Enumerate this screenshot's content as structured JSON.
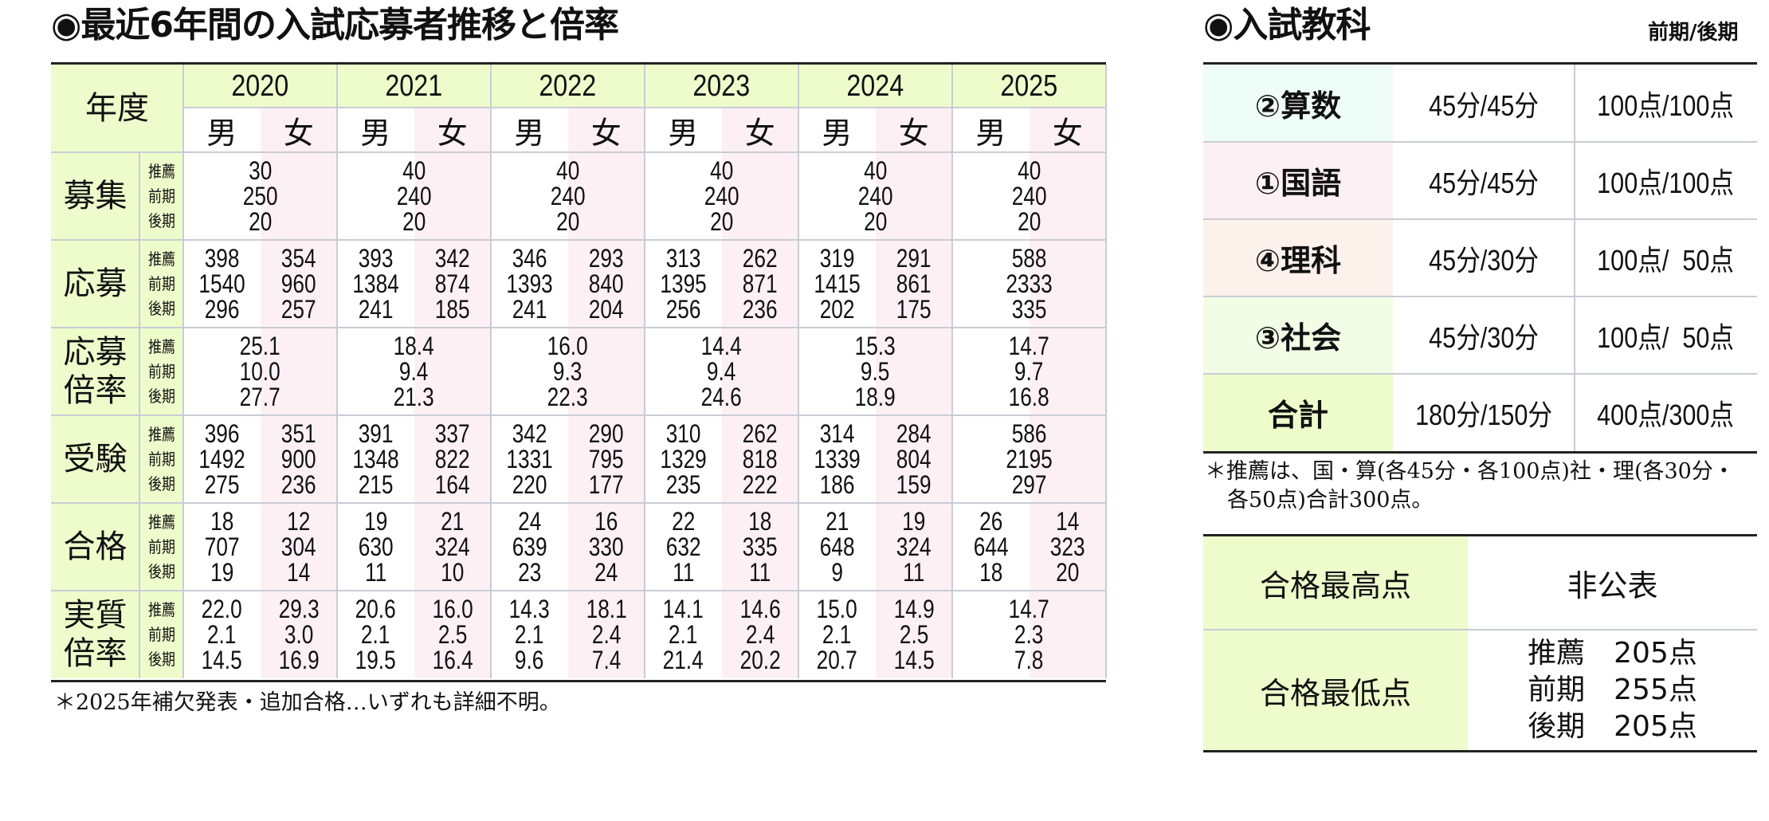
{
  "left": {
    "title": "◉最近6年間の入試応募者推移と倍率",
    "corner_label": "年度",
    "years": [
      "2020",
      "2021",
      "2022",
      "2023",
      "2024",
      "2025"
    ],
    "male": "男",
    "female": "女",
    "sub_labels": [
      "推薦",
      "前期",
      "後期"
    ],
    "rows": [
      {
        "label": "募集",
        "merged": true,
        "values": [
          [
            "30",
            "250",
            "20"
          ],
          [
            "40",
            "240",
            "20"
          ],
          [
            "40",
            "240",
            "20"
          ],
          [
            "40",
            "240",
            "20"
          ],
          [
            "40",
            "240",
            "20"
          ],
          [
            "40",
            "240",
            "20"
          ]
        ]
      },
      {
        "label": "応募",
        "merged": false,
        "values": [
          {
            "m": [
              "398",
              "1540",
              "296"
            ],
            "f": [
              "354",
              "960",
              "257"
            ]
          },
          {
            "m": [
              "393",
              "1384",
              "241"
            ],
            "f": [
              "342",
              "874",
              "185"
            ]
          },
          {
            "m": [
              "346",
              "1393",
              "241"
            ],
            "f": [
              "293",
              "840",
              "204"
            ]
          },
          {
            "m": [
              "313",
              "1395",
              "256"
            ],
            "f": [
              "262",
              "871",
              "236"
            ]
          },
          {
            "m": [
              "319",
              "1415",
              "202"
            ],
            "f": [
              "291",
              "861",
              "175"
            ]
          },
          {
            "merged": [
              "588",
              "2333",
              "335"
            ]
          }
        ]
      },
      {
        "label": "応募倍率",
        "label_lines": [
          "応募",
          "倍率"
        ],
        "merged": true,
        "values": [
          [
            "25.1",
            "10.0",
            "27.7"
          ],
          [
            "18.4",
            "9.4",
            "21.3"
          ],
          [
            "16.0",
            "9.3",
            "22.3"
          ],
          [
            "14.4",
            "9.4",
            "24.6"
          ],
          [
            "15.3",
            "9.5",
            "18.9"
          ],
          [
            "14.7",
            "9.7",
            "16.8"
          ]
        ]
      },
      {
        "label": "受験",
        "merged": false,
        "values": [
          {
            "m": [
              "396",
              "1492",
              "275"
            ],
            "f": [
              "351",
              "900",
              "236"
            ]
          },
          {
            "m": [
              "391",
              "1348",
              "215"
            ],
            "f": [
              "337",
              "822",
              "164"
            ]
          },
          {
            "m": [
              "342",
              "1331",
              "220"
            ],
            "f": [
              "290",
              "795",
              "177"
            ]
          },
          {
            "m": [
              "310",
              "1329",
              "235"
            ],
            "f": [
              "262",
              "818",
              "222"
            ]
          },
          {
            "m": [
              "314",
              "1339",
              "186"
            ],
            "f": [
              "284",
              "804",
              "159"
            ]
          },
          {
            "merged": [
              "586",
              "2195",
              "297"
            ]
          }
        ]
      },
      {
        "label": "合格",
        "merged": false,
        "values": [
          {
            "m": [
              "18",
              "707",
              "19"
            ],
            "f": [
              "12",
              "304",
              "14"
            ]
          },
          {
            "m": [
              "19",
              "630",
              "11"
            ],
            "f": [
              "21",
              "324",
              "10"
            ]
          },
          {
            "m": [
              "24",
              "639",
              "23"
            ],
            "f": [
              "16",
              "330",
              "24"
            ]
          },
          {
            "m": [
              "22",
              "632",
              "11"
            ],
            "f": [
              "18",
              "335",
              "11"
            ]
          },
          {
            "m": [
              "21",
              "648",
              "9"
            ],
            "f": [
              "19",
              "324",
              "11"
            ]
          },
          {
            "m": [
              "26",
              "644",
              "18"
            ],
            "f": [
              "14",
              "323",
              "20"
            ]
          }
        ]
      },
      {
        "label": "実質倍率",
        "label_lines": [
          "実質",
          "倍率"
        ],
        "merged": false,
        "values": [
          {
            "m": [
              "22.0",
              "2.1",
              "14.5"
            ],
            "f": [
              "29.3",
              "3.0",
              "16.9"
            ]
          },
          {
            "m": [
              "20.6",
              "2.1",
              "19.5"
            ],
            "f": [
              "16.0",
              "2.5",
              "16.4"
            ]
          },
          {
            "m": [
              "14.3",
              "2.1",
              "9.6"
            ],
            "f": [
              "18.1",
              "2.4",
              "7.4"
            ]
          },
          {
            "m": [
              "14.1",
              "2.1",
              "21.4"
            ],
            "f": [
              "14.6",
              "2.4",
              "20.2"
            ]
          },
          {
            "m": [
              "15.0",
              "2.1",
              "20.7"
            ],
            "f": [
              "14.9",
              "2.5",
              "14.5"
            ]
          },
          {
            "merged": [
              "14.7",
              "2.3",
              "7.8"
            ]
          }
        ]
      }
    ],
    "note": "＊2025年補欠発表・追加合格…いずれも詳細不明。"
  },
  "right": {
    "title": "◉入試教科",
    "caption": "前期/後期",
    "subjects": [
      {
        "name": "②算数",
        "time": "45分/45分",
        "score": "100点/100点",
        "color": "#effdf8"
      },
      {
        "name": "①国語",
        "time": "45分/45分",
        "score": "100点/100点",
        "color": "#fdf0f5"
      },
      {
        "name": "④理科",
        "time": "45分/30分",
        "score": "100点/  50点",
        "color": "#fdf1ec"
      },
      {
        "name": "③社会",
        "time": "45分/30分",
        "score": "100点/  50点",
        "color": "#f2fde6"
      },
      {
        "name": "合計",
        "time": "180分/150分",
        "score": "400点/300点",
        "color": "#eefccc"
      }
    ],
    "note_line1": "＊推薦は、国・算(各45分・各100点)社・理(各30分・",
    "note_line2": "各50点)合計300点。",
    "max_label": "合格最高点",
    "max_value": "非公表",
    "min_label": "合格最低点",
    "min_values": [
      {
        "type": "推薦",
        "score": "205点"
      },
      {
        "type": "前期",
        "score": "255点"
      },
      {
        "type": "後期",
        "score": "205点"
      }
    ]
  },
  "colors": {
    "header_green": "#eefccc",
    "female_pink": "#fdf0f5",
    "grid": "#c9ccd4",
    "rule": "#222222"
  }
}
